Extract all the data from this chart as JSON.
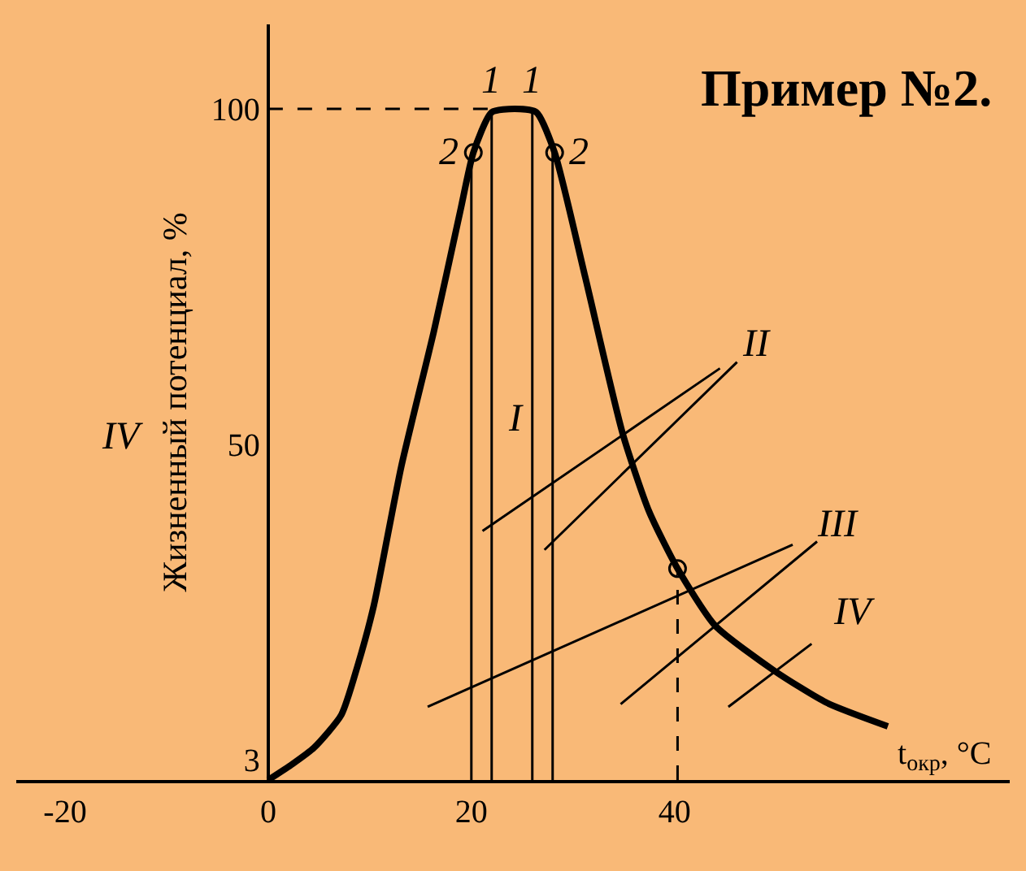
{
  "chart_data": {
    "type": "line",
    "title": "Пример №2.",
    "xlabel": "t$_{окр}$, °C",
    "ylabel": "Жизненный потенциал, %",
    "xlim": [
      -24.8,
      73
    ],
    "ylim": [
      0,
      112.6
    ],
    "xticks": [
      -20,
      0,
      20,
      40
    ],
    "yticks": [
      3,
      50,
      100
    ],
    "grid": false,
    "marker": "none",
    "line_style": "solid",
    "x": [
      0,
      2.4,
      4.5,
      7.2,
      8.8,
      10.4,
      13.1,
      16.3,
      18.9,
      20.2,
      22,
      24.3,
      26.4,
      28.2,
      31.2,
      34.9,
      37.5,
      40.3,
      44,
      49.9,
      55,
      61
    ],
    "series": [
      {
        "color": "#000000",
        "values": [
          0,
          2.4,
          4.8,
          9.7,
          17,
          26,
          46.7,
          66.8,
          84.7,
          93.5,
          99.5,
          100,
          99.5,
          93.5,
          75,
          51.6,
          40,
          31.5,
          23,
          16.2,
          11.5,
          8
        ]
      },
      {
        "color": "#000000",
        "x": [
          20,
          20
        ],
        "values": [
          0,
          93.5
        ]
      },
      {
        "color": "#000000",
        "x": [
          22,
          22
        ],
        "values": [
          0,
          99.5
        ]
      },
      {
        "color": "#000000",
        "x": [
          26,
          26
        ],
        "values": [
          0,
          99.5
        ]
      },
      {
        "color": "#000000",
        "x": [
          28,
          28
        ],
        "values": [
          0,
          93.5
        ]
      },
      {
        "color": "#000000",
        "x": [
          0,
          24.3
        ],
        "values": [
          100,
          100
        ],
        "line_style": "dashed"
      },
      {
        "color": "#000000",
        "x": [
          40.3,
          40.3
        ],
        "values": [
          0,
          31.5
        ],
        "line_style": "dashed"
      },
      {
        "color": "#000000",
        "type": "scatter",
        "marker": "circle",
        "x": [
          20.2,
          28.2,
          40.3
        ],
        "values": [
          93.5,
          93.5,
          31.5
        ]
      }
    ],
    "annotations": [
      {
        "text": "1",
        "x": 22,
        "y": 99.5
      },
      {
        "text": "1",
        "x": 26,
        "y": 99.5
      },
      {
        "text": "2",
        "x": 20.2,
        "y": 93.5
      },
      {
        "text": "2",
        "x": 28.2,
        "y": 93.5
      },
      "I",
      "II",
      "III",
      "IV",
      "IV"
    ]
  }
}
